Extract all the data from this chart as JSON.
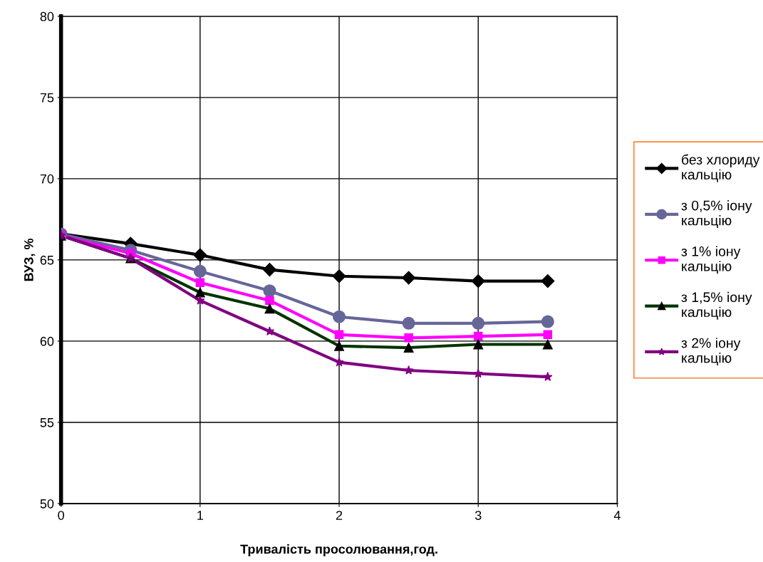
{
  "chart_data": {
    "type": "line",
    "xlabel": "Тривалість просолювання,год.",
    "ylabel": "ВУЗ, %",
    "x": [
      0,
      0.5,
      1,
      1.5,
      2,
      2.5,
      3,
      3.5
    ],
    "series": [
      {
        "name": "без хлориду кальцію",
        "color": "#000000",
        "marker": "diamond",
        "values": [
          66.6,
          66.0,
          65.3,
          64.4,
          64.0,
          63.9,
          63.7,
          63.7
        ]
      },
      {
        "name": "з 0,5% іону кальцію",
        "color": "#666699",
        "marker": "circle",
        "values": [
          66.6,
          65.6,
          64.3,
          63.1,
          61.5,
          61.1,
          61.1,
          61.2
        ]
      },
      {
        "name": "з 1% іону кальцію",
        "color": "#ff00ff",
        "marker": "square",
        "values": [
          66.5,
          65.4,
          63.6,
          62.5,
          60.4,
          60.2,
          60.3,
          60.4
        ]
      },
      {
        "name": "з 1,5% іону кальцію",
        "color": "#003300",
        "marker": "triangle",
        "values": [
          66.5,
          65.1,
          63.0,
          62.0,
          59.7,
          59.6,
          59.8,
          59.8
        ]
      },
      {
        "name": "з 2% іону кальцію",
        "color": "#800080",
        "marker": "star",
        "values": [
          66.5,
          65.1,
          62.5,
          60.6,
          58.7,
          58.2,
          58.0,
          57.8
        ]
      }
    ],
    "xlim": [
      0,
      4
    ],
    "xticks": [
      0,
      1,
      2,
      3,
      4
    ],
    "ylim": [
      50,
      80
    ],
    "yticks": [
      50,
      55,
      60,
      65,
      70,
      75,
      80
    ],
    "grid": true,
    "legend": "right"
  }
}
